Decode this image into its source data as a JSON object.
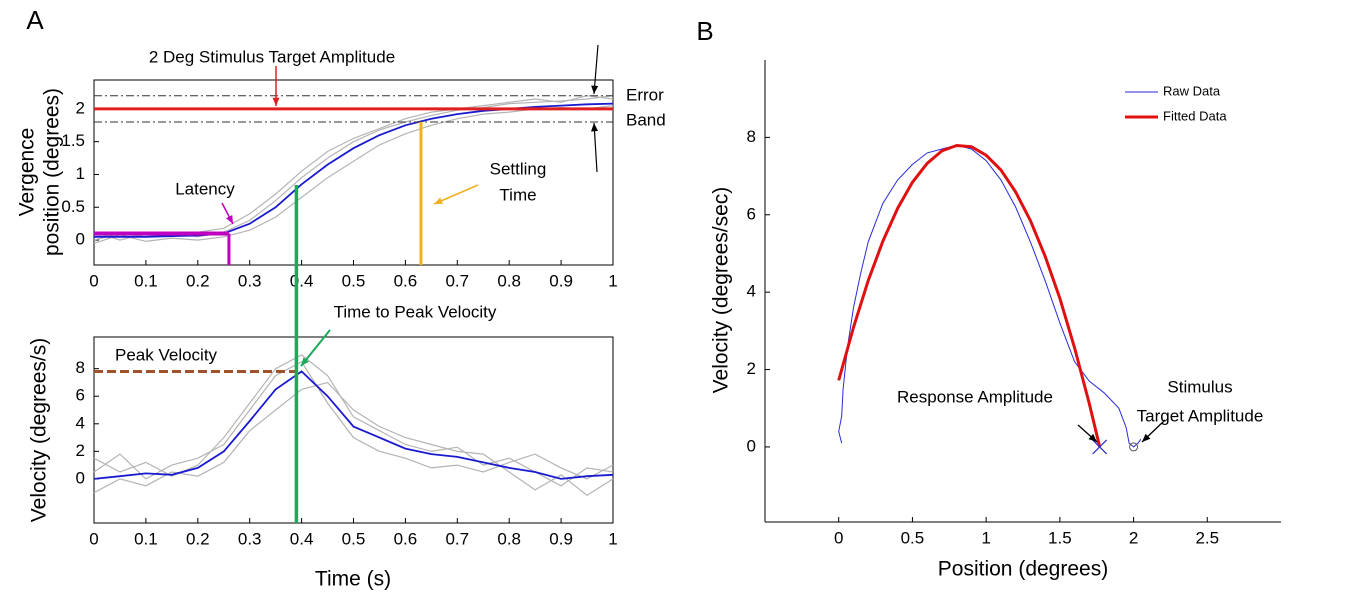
{
  "chart_data": [
    {
      "type": "line",
      "panel_label": "A",
      "ylabel": [
        "Vergence",
        "position (degrees)"
      ],
      "x": [
        0,
        0.05,
        0.1,
        0.15,
        0.2,
        0.25,
        0.3,
        0.35,
        0.4,
        0.45,
        0.5,
        0.55,
        0.6,
        0.65,
        0.7,
        0.75,
        0.8,
        0.85,
        0.9,
        0.95,
        1
      ],
      "series": [
        {
          "color": "#b4b4b4",
          "values": [
            0.12,
            0.0,
            0.1,
            0.08,
            0.12,
            0.18,
            0.4,
            0.7,
            1.05,
            1.35,
            1.55,
            1.7,
            1.85,
            1.95,
            2.0,
            2.05,
            2.1,
            2.15,
            2.1,
            2.2,
            2.15
          ]
        },
        {
          "color": "#b4b4b4",
          "values": [
            -0.05,
            0.08,
            -0.02,
            0.03,
            0.0,
            0.05,
            0.15,
            0.35,
            0.65,
            0.95,
            1.2,
            1.45,
            1.62,
            1.75,
            1.85,
            1.92,
            1.95,
            2.0,
            2.02,
            2.0,
            2.05
          ]
        },
        {
          "color": "#b4b4b4",
          "values": [
            0.0,
            0.1,
            0.05,
            0.1,
            0.05,
            0.12,
            0.3,
            0.6,
            0.95,
            1.25,
            1.5,
            1.68,
            1.8,
            1.9,
            1.98,
            2.02,
            2.08,
            2.1,
            2.12,
            2.15,
            2.2
          ]
        },
        {
          "color": "#1a1ad0",
          "values": [
            0.05,
            0.05,
            0.05,
            0.06,
            0.07,
            0.1,
            0.25,
            0.5,
            0.85,
            1.15,
            1.4,
            1.6,
            1.75,
            1.85,
            1.92,
            1.97,
            2.0,
            2.03,
            2.05,
            2.07,
            2.08
          ]
        }
      ],
      "target": {
        "value": 2,
        "color": "#e02020"
      },
      "error_band": [
        1.8,
        2.2
      ],
      "latency": {
        "x": 0.26,
        "y": 0.1,
        "color": "#c000c0"
      },
      "settling_time": {
        "x": 0.63,
        "color": "#f0b020"
      },
      "annotations": [
        "2 Deg Stimulus Target Amplitude",
        "Latency",
        "Settling",
        "Time",
        "Error",
        "Band"
      ],
      "xlim": [
        0,
        1
      ],
      "xticks": [
        0,
        0.1,
        0.2,
        0.3,
        0.4,
        0.5,
        0.6,
        0.7,
        0.8,
        0.9,
        1
      ],
      "ylim": [
        -0.38,
        2.44
      ],
      "yticks": [
        0,
        0.5,
        1,
        1.5,
        2
      ]
    },
    {
      "type": "line",
      "ylabel": [
        "Velocity (degrees/s)"
      ],
      "xlabel": "Time (s)",
      "x": [
        0,
        0.05,
        0.1,
        0.15,
        0.2,
        0.25,
        0.3,
        0.35,
        0.4,
        0.45,
        0.5,
        0.55,
        0.6,
        0.65,
        0.7,
        0.75,
        0.8,
        0.85,
        0.9,
        0.95,
        1
      ],
      "series": [
        {
          "color": "#b4b4b4",
          "values": [
            1.5,
            0.5,
            1.2,
            0.2,
            1.0,
            3.0,
            5.5,
            8.0,
            9.0,
            7.5,
            4.5,
            3.5,
            2.5,
            2.0,
            2.3,
            1.0,
            1.5,
            0.5,
            -0.5,
            0.8,
            0.5
          ]
        },
        {
          "color": "#b4b4b4",
          "values": [
            -1.0,
            0.0,
            -0.5,
            0.5,
            0.2,
            1.2,
            3.5,
            5.0,
            6.5,
            7.0,
            5.0,
            3.8,
            3.0,
            2.5,
            2.0,
            1.8,
            0.5,
            -0.8,
            0.3,
            -1.2,
            0.0
          ]
        },
        {
          "color": "#b4b4b4",
          "values": [
            0.5,
            1.8,
            0.0,
            1.0,
            1.5,
            2.5,
            5.0,
            7.5,
            8.5,
            5.5,
            3.0,
            2.0,
            1.5,
            0.8,
            1.0,
            0.5,
            1.2,
            1.8,
            0.8,
            0.0,
            1.0
          ]
        },
        {
          "color": "#1a1ad0",
          "values": [
            0,
            0.2,
            0.4,
            0.3,
            0.8,
            2.0,
            4.2,
            6.5,
            7.8,
            6.0,
            3.8,
            3.0,
            2.2,
            1.8,
            1.6,
            1.2,
            0.8,
            0.5,
            0.0,
            0.2,
            0.3
          ]
        }
      ],
      "peak_velocity": {
        "value": 7.8,
        "color": "#a0522d"
      },
      "peak_time": {
        "value": 0.39,
        "color": "#1aaa5a"
      },
      "annotations": [
        "Peak Velocity",
        "Time to Peak Velocity"
      ],
      "xlim": [
        0,
        1
      ],
      "xticks": [
        0,
        0.1,
        0.2,
        0.3,
        0.4,
        0.5,
        0.6,
        0.7,
        0.8,
        0.9,
        1
      ],
      "ylim": [
        -3.2,
        10.3
      ],
      "yticks": [
        0,
        2,
        4,
        6,
        8
      ]
    },
    {
      "type": "line",
      "panel_label": "B",
      "ylabel": [
        "Velocity (degrees/sec)"
      ],
      "xlabel": "Position (degrees)",
      "series": [
        {
          "name": "Raw Data",
          "color": "#2a2ad8",
          "width": 1,
          "x": [
            0.02,
            0.0,
            0.02,
            0.03,
            0.06,
            0.1,
            0.15,
            0.2,
            0.3,
            0.4,
            0.5,
            0.6,
            0.7,
            0.8,
            0.9,
            1.0,
            1.1,
            1.2,
            1.3,
            1.4,
            1.5,
            1.6,
            1.7,
            1.8,
            1.9,
            1.95,
            1.97,
            2.0,
            2.03,
            2.05
          ],
          "values": [
            0.1,
            0.4,
            0.8,
            1.5,
            2.6,
            3.6,
            4.5,
            5.3,
            6.3,
            6.9,
            7.3,
            7.6,
            7.7,
            7.8,
            7.7,
            7.4,
            6.9,
            6.2,
            5.3,
            4.3,
            3.2,
            2.2,
            1.7,
            1.4,
            1.0,
            0.5,
            0.1,
            0.0,
            0.1,
            0.2
          ]
        },
        {
          "name": "Fitted Data",
          "color": "#e01010",
          "width": 3,
          "x": [
            0,
            0.1,
            0.2,
            0.3,
            0.4,
            0.5,
            0.6,
            0.7,
            0.8,
            0.9,
            1.0,
            1.1,
            1.2,
            1.3,
            1.4,
            1.5,
            1.6,
            1.7,
            1.77
          ],
          "values": [
            1.72,
            3.09,
            4.3,
            5.32,
            6.17,
            6.84,
            7.33,
            7.65,
            7.79,
            7.76,
            7.54,
            7.16,
            6.59,
            5.85,
            4.93,
            3.84,
            2.56,
            1.12,
            0.0
          ]
        }
      ],
      "response_amplitude": 1.77,
      "target_amplitude": 2,
      "annotations": [
        "Response Amplitude",
        "Stimulus",
        "Target Amplitude"
      ],
      "xlim": [
        -0.5,
        3.0
      ],
      "xticks": [
        0,
        0.5,
        1,
        1.5,
        2,
        2.5
      ],
      "ylim": [
        -1.94,
        10
      ],
      "yticks": [
        0,
        2,
        4,
        6,
        8
      ]
    }
  ]
}
